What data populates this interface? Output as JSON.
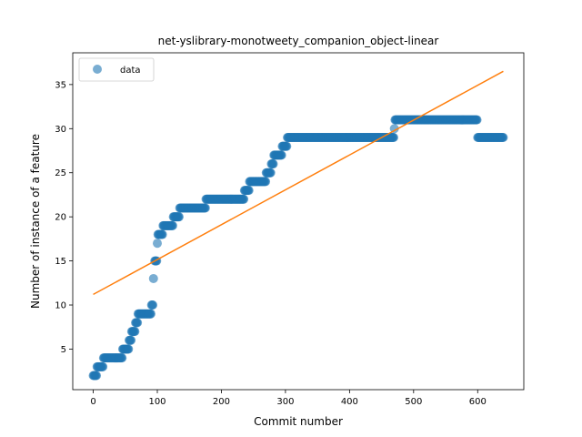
{
  "chart_data": {
    "type": "scatter",
    "title": "net-yslibrary-monotweety_companion_object-linear",
    "xlabel": "Commit number",
    "ylabel": "Number of instance of a feature",
    "xlim": [
      -32,
      672
    ],
    "ylim": [
      0.4,
      38.6
    ],
    "xticks": [
      0,
      100,
      200,
      300,
      400,
      500,
      600
    ],
    "yticks": [
      5,
      10,
      15,
      20,
      25,
      30,
      35
    ],
    "legend": {
      "position": "top-left",
      "entries": [
        "data"
      ]
    },
    "colors": {
      "data": "#1f77b4",
      "fit": "#ff7f0e"
    },
    "series": [
      {
        "name": "data",
        "kind": "scatter",
        "segments": [
          [
            0,
            5,
            2
          ],
          [
            6,
            15,
            3
          ],
          [
            16,
            45,
            4
          ],
          [
            46,
            55,
            5
          ],
          [
            56,
            59,
            6
          ],
          [
            60,
            65,
            7
          ],
          [
            66,
            69,
            8
          ],
          [
            70,
            90,
            9
          ],
          [
            91,
            93,
            10
          ],
          [
            94,
            94,
            13
          ],
          [
            96,
            99,
            15
          ],
          [
            100,
            100,
            17
          ],
          [
            101,
            105,
            18
          ],
          [
            106,
            108,
            18
          ],
          [
            109,
            124,
            19
          ],
          [
            125,
            134,
            20
          ],
          [
            135,
            175,
            21
          ],
          [
            176,
            235,
            22
          ],
          [
            236,
            243,
            23
          ],
          [
            244,
            269,
            24
          ],
          [
            270,
            277,
            25
          ],
          [
            278,
            281,
            26
          ],
          [
            282,
            294,
            27
          ],
          [
            295,
            302,
            28
          ],
          [
            303,
            469,
            29
          ],
          [
            470,
            470,
            30
          ],
          [
            471,
            599,
            31
          ],
          [
            600,
            640,
            29
          ]
        ]
      },
      {
        "name": "linear fit",
        "kind": "line",
        "x": [
          0,
          640
        ],
        "y": [
          11.2,
          36.5
        ]
      }
    ]
  }
}
